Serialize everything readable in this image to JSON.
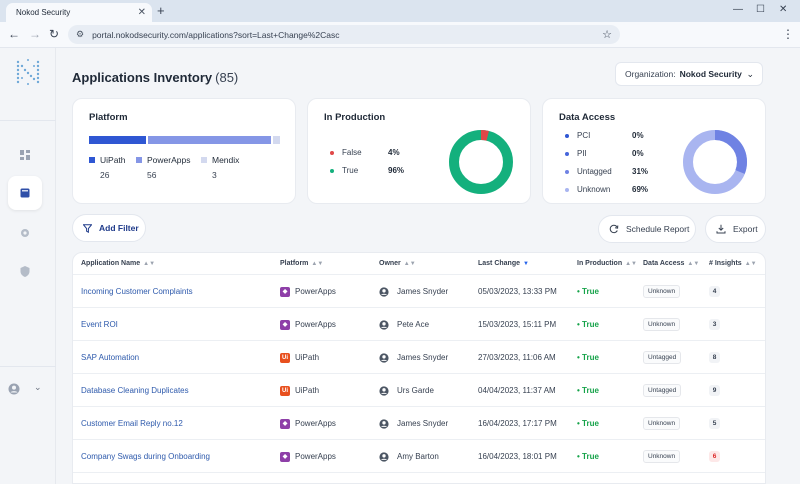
{
  "browser": {
    "tab_title": "Nokod Security",
    "tab_close": "✕",
    "new_tab": "+",
    "url": "portal.nokodsecurity.com/applications?sort=Last+Change%2Casc"
  },
  "page": {
    "title": "Applications Inventory",
    "count": "(85)",
    "organization_label": "Organization:",
    "organization_value": "Nokod Security"
  },
  "platform_card": {
    "title": "Platform",
    "legend": [
      {
        "name": "UiPath",
        "count": "26",
        "color": "#2f57d3"
      },
      {
        "name": "PowerApps",
        "count": "56",
        "color": "#8596e6"
      },
      {
        "name": "Mendix",
        "count": "3",
        "color": "#d3d9ef"
      }
    ]
  },
  "production_card": {
    "title": "In Production",
    "items": [
      {
        "label": "False",
        "pct": "4%",
        "color": "#e04848"
      },
      {
        "label": "True",
        "pct": "96%",
        "color": "#14b07d"
      }
    ]
  },
  "data_access_card": {
    "title": "Data Access",
    "items": [
      {
        "label": "PCI",
        "pct": "0%",
        "color": "#2f57d3"
      },
      {
        "label": "PII",
        "pct": "0%",
        "color": "#4665db"
      },
      {
        "label": "Untagged",
        "pct": "31%",
        "color": "#6f82e3"
      },
      {
        "label": "Unknown",
        "pct": "69%",
        "color": "#a9b5f0"
      }
    ]
  },
  "actions": {
    "add_filter": "Add Filter",
    "schedule_report": "Schedule Report",
    "export": "Export"
  },
  "table": {
    "columns": [
      "Application Name",
      "Platform",
      "Owner",
      "Last Change",
      "In Production",
      "Data Access",
      "# Insights"
    ],
    "rows": [
      {
        "name": "Incoming Customer Complaints",
        "platform": "PowerApps",
        "owner": "James Snyder",
        "last_change": "05/03/2023, 13:33 PM",
        "in_production": "True",
        "data_access": "Unknown",
        "insights": "4"
      },
      {
        "name": "Event ROI",
        "platform": "PowerApps",
        "owner": "Pete Ace",
        "last_change": "15/03/2023, 15:11 PM",
        "in_production": "True",
        "data_access": "Unknown",
        "insights": "3"
      },
      {
        "name": "SAP Automation",
        "platform": "UiPath",
        "owner": "James Snyder",
        "last_change": "27/03/2023, 11:06 AM",
        "in_production": "True",
        "data_access": "Untagged",
        "insights": "8"
      },
      {
        "name": "Database Cleaning Duplicates",
        "platform": "UiPath",
        "owner": "Urs Garde",
        "last_change": "04/04/2023, 11:37 AM",
        "in_production": "True",
        "data_access": "Untagged",
        "insights": "9"
      },
      {
        "name": "Customer Email Reply no.12",
        "platform": "PowerApps",
        "owner": "James Snyder",
        "last_change": "16/04/2023, 17:17 PM",
        "in_production": "True",
        "data_access": "Unknown",
        "insights": "5"
      },
      {
        "name": "Company Swags during Onboarding",
        "platform": "PowerApps",
        "owner": "Amy Barton",
        "last_change": "16/04/2023, 18:01 PM",
        "in_production": "True",
        "data_access": "Unknown",
        "insights": "6"
      }
    ]
  }
}
